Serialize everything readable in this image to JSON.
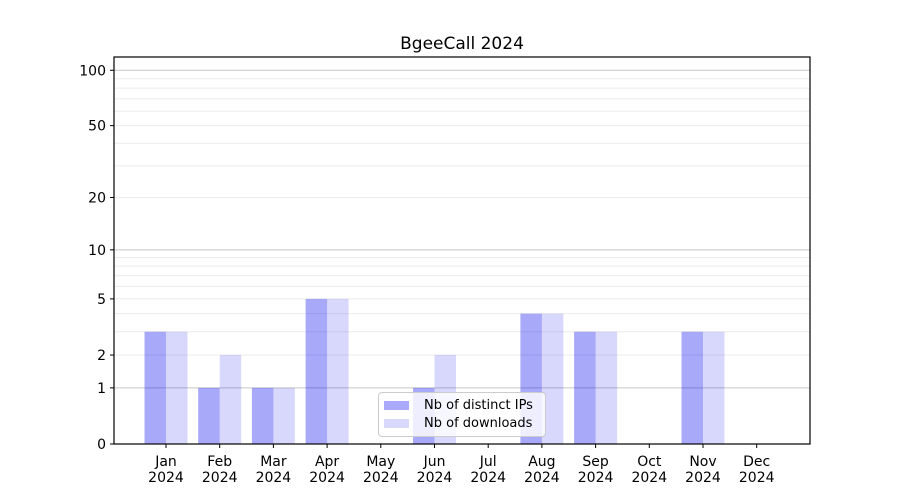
{
  "chart_data": {
    "type": "bar",
    "title": "BgeeCall 2024",
    "categories": [
      {
        "month": "Jan",
        "year": "2024"
      },
      {
        "month": "Feb",
        "year": "2024"
      },
      {
        "month": "Mar",
        "year": "2024"
      },
      {
        "month": "Apr",
        "year": "2024"
      },
      {
        "month": "May",
        "year": "2024"
      },
      {
        "month": "Jun",
        "year": "2024"
      },
      {
        "month": "Jul",
        "year": "2024"
      },
      {
        "month": "Aug",
        "year": "2024"
      },
      {
        "month": "Sep",
        "year": "2024"
      },
      {
        "month": "Oct",
        "year": "2024"
      },
      {
        "month": "Nov",
        "year": "2024"
      },
      {
        "month": "Dec",
        "year": "2024"
      }
    ],
    "series": [
      {
        "name": "Nb of distinct IPs",
        "color": "rgba(10,10,240,0.35)",
        "values": [
          3,
          1,
          1,
          5,
          0,
          1,
          0,
          4,
          3,
          0,
          3,
          0
        ]
      },
      {
        "name": "Nb of downloads",
        "color": "rgba(10,10,240,0.16)",
        "values": [
          3,
          2,
          1,
          5,
          0,
          2,
          0,
          4,
          3,
          0,
          3,
          0
        ]
      }
    ],
    "xlabel": "",
    "ylabel": "",
    "yscale": "log1p",
    "ylim": [
      0,
      118
    ],
    "yticks": [
      0,
      1,
      2,
      5,
      10,
      20,
      50,
      100
    ],
    "major_gridlines": [
      1,
      10,
      100
    ],
    "minor_gridlines": [
      2,
      3,
      4,
      5,
      6,
      7,
      8,
      9,
      20,
      30,
      40,
      50,
      60,
      70,
      80,
      90
    ],
    "grid": true,
    "legend_position": "lower center",
    "colors": {
      "axis": "#000000",
      "tick_label": "#000000",
      "major_grid": "#c6c6c6",
      "minor_grid": "#ebebeb",
      "background": "#ffffff"
    }
  }
}
